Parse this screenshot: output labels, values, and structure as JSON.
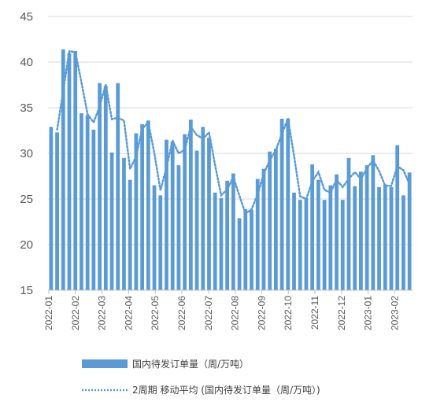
{
  "chart_data": {
    "type": "bar",
    "y_ticks": [
      "15",
      "20",
      "25",
      "30",
      "35",
      "40",
      "45"
    ],
    "ylim": [
      15,
      45
    ],
    "grid": true,
    "legend_position": "bottom",
    "colors": {
      "bar": "#5B9BD5",
      "line": "#5B9BD5",
      "grid": "#D9D9D9",
      "axis": "#BFBFBF"
    },
    "month_labels": [
      "2022-01",
      "2022-02",
      "2022-03",
      "2022-04",
      "2022-05",
      "2022-06",
      "2022-07",
      "2022-08",
      "2022-09",
      "2022-10",
      "2022-11",
      "2022-12",
      "2023-01",
      "2023-02"
    ],
    "series": [
      {
        "name": "国内待发订单量（周/万吨）",
        "kind": "bar",
        "values": [
          32.9,
          32.3,
          41.4,
          41.0,
          41.2,
          34.4,
          34.2,
          32.6,
          37.7,
          37.4,
          30.1,
          37.7,
          29.5,
          27.1,
          32.2,
          33.2,
          33.6,
          26.5,
          25.4,
          31.5,
          31.3,
          28.7,
          32.1,
          33.7,
          30.3,
          32.9,
          31.7,
          25.7,
          25.1,
          27.0,
          27.8,
          22.9,
          23.9,
          23.8,
          27.2,
          28.3,
          30.2,
          30.5,
          33.8,
          33.8,
          25.7,
          24.9,
          25.1,
          28.8,
          27.1,
          24.9,
          26.5,
          27.7,
          24.9,
          29.5,
          26.4,
          28.0,
          28.7,
          29.8,
          26.3,
          26.6,
          26.3,
          30.9,
          25.4,
          27.9
        ]
      },
      {
        "name": "2周期 移动平均 (国内待发订单量（周/万吨）)",
        "kind": "moving-average",
        "period": 2
      }
    ]
  }
}
